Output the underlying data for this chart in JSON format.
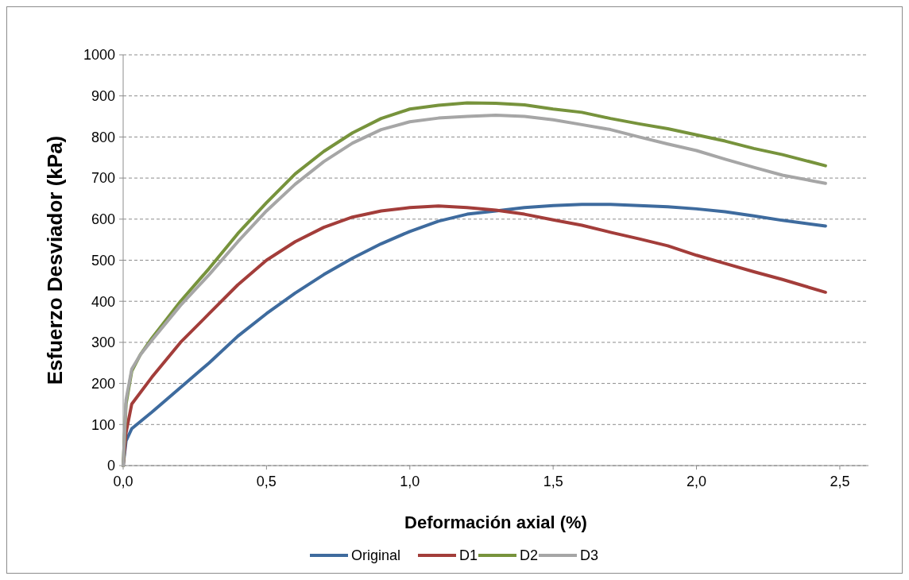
{
  "chart_data": {
    "type": "line",
    "xlabel": "Deformación axial (%)",
    "ylabel": "Esfuerzo Desviador (kPa)",
    "xlim": [
      0,
      2.6
    ],
    "ylim": [
      0,
      1000
    ],
    "xticks": [
      {
        "value": 0,
        "label": "0,0"
      },
      {
        "value": 0.5,
        "label": "0,5"
      },
      {
        "value": 1,
        "label": "1,0"
      },
      {
        "value": 1.5,
        "label": "1,5"
      },
      {
        "value": 2,
        "label": "2,0"
      },
      {
        "value": 2.5,
        "label": "2,5"
      }
    ],
    "yticks": [
      0,
      100,
      200,
      300,
      400,
      500,
      600,
      700,
      800,
      900,
      1000
    ],
    "grid": "y",
    "legend": "bottom",
    "line_style": "solid",
    "series": [
      {
        "name": "Original",
        "color": "#3e6b9e",
        "x": [
          0,
          0.01,
          0.03,
          0.1,
          0.2,
          0.3,
          0.4,
          0.5,
          0.6,
          0.7,
          0.8,
          0.9,
          1.0,
          1.1,
          1.2,
          1.3,
          1.4,
          1.5,
          1.6,
          1.7,
          1.8,
          1.9,
          2.0,
          2.1,
          2.2,
          2.3,
          2.45
        ],
        "values": [
          0,
          60,
          90,
          130,
          190,
          250,
          315,
          370,
          420,
          465,
          505,
          540,
          570,
          595,
          612,
          620,
          628,
          633,
          636,
          636,
          633,
          630,
          625,
          618,
          608,
          597,
          583
        ]
      },
      {
        "name": "D1",
        "color": "#a33d3a",
        "x": [
          0,
          0.01,
          0.03,
          0.1,
          0.2,
          0.3,
          0.4,
          0.5,
          0.6,
          0.7,
          0.8,
          0.9,
          1.0,
          1.1,
          1.2,
          1.3,
          1.4,
          1.5,
          1.6,
          1.7,
          1.8,
          1.9,
          2.0,
          2.1,
          2.2,
          2.3,
          2.45
        ],
        "values": [
          0,
          80,
          150,
          215,
          300,
          370,
          440,
          500,
          545,
          580,
          605,
          620,
          628,
          632,
          628,
          622,
          612,
          598,
          585,
          568,
          552,
          535,
          512,
          492,
          472,
          453,
          422
        ]
      },
      {
        "name": "D2",
        "color": "#77933c",
        "x": [
          0,
          0.01,
          0.03,
          0.06,
          0.1,
          0.2,
          0.3,
          0.4,
          0.5,
          0.6,
          0.7,
          0.8,
          0.9,
          1.0,
          1.1,
          1.2,
          1.3,
          1.4,
          1.5,
          1.6,
          1.7,
          1.8,
          1.9,
          2.0,
          2.1,
          2.2,
          2.3,
          2.45
        ],
        "values": [
          0,
          150,
          230,
          270,
          310,
          400,
          480,
          565,
          640,
          710,
          765,
          810,
          845,
          868,
          877,
          883,
          882,
          878,
          868,
          860,
          845,
          832,
          820,
          805,
          790,
          772,
          757,
          730
        ]
      },
      {
        "name": "D3",
        "color": "#a6a6a6",
        "x": [
          0,
          0.01,
          0.03,
          0.06,
          0.1,
          0.2,
          0.3,
          0.4,
          0.5,
          0.6,
          0.7,
          0.8,
          0.9,
          1.0,
          1.1,
          1.2,
          1.3,
          1.4,
          1.5,
          1.6,
          1.7,
          1.8,
          1.9,
          2.0,
          2.1,
          2.2,
          2.3,
          2.45
        ],
        "values": [
          0,
          160,
          235,
          270,
          305,
          390,
          465,
          545,
          620,
          685,
          740,
          785,
          818,
          837,
          846,
          850,
          853,
          850,
          842,
          830,
          818,
          800,
          783,
          767,
          746,
          726,
          707,
          687
        ]
      }
    ]
  }
}
